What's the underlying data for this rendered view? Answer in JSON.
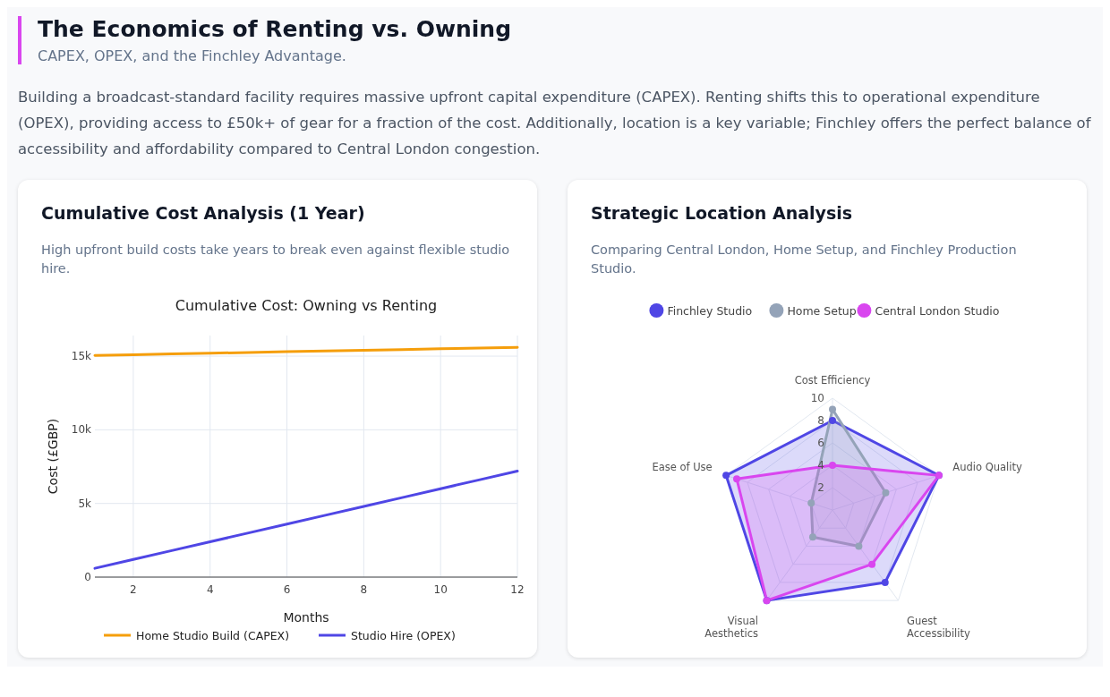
{
  "chart_data": [
    {
      "type": "other",
      "title": "The Economics of Renting vs. Owning",
      "subtitle": "CAPEX, OPEX, and the Finchley Advantage.",
      "annotations": [
        "Building a broadcast-standard facility requires massive upfront capital expenditure (CAPEX). Renting shifts this to operational expenditure (OPEX), providing access to £50k+ of gear for a fraction of the cost. Additionally, location is a key variable; Finchley offers the perfect balance of accessibility and affordability compared to Central London congestion."
      ]
    },
    {
      "type": "line",
      "title": "Cumulative Cost Analysis (1 Year)",
      "subtitle": "High upfront build costs take years to break even against flexible studio hire.",
      "annotations": [
        "Cumulative Cost: Owning vs Renting"
      ],
      "xlabel": "Months",
      "ylabel": "Cost (£GBP)",
      "x": [
        1,
        2,
        3,
        4,
        5,
        6,
        7,
        8,
        9,
        10,
        11,
        12
      ],
      "series": [
        {
          "name": "Home Studio Build (CAPEX)",
          "color": "#f59e0b",
          "values": [
            15050,
            15100,
            15150,
            15200,
            15250,
            15300,
            15350,
            15400,
            15450,
            15500,
            15550,
            15600
          ]
        },
        {
          "name": "Studio Hire (OPEX)",
          "color": "#4f46e5",
          "values": [
            600,
            1200,
            1800,
            2400,
            3000,
            3600,
            4200,
            4800,
            5400,
            6000,
            6600,
            7200
          ]
        }
      ],
      "xlim": [
        1,
        12
      ],
      "xticks": [
        2,
        4,
        6,
        8,
        10,
        12
      ],
      "ylim": [
        0,
        16400
      ],
      "yticks": [
        {
          "value": 0,
          "label": "0"
        },
        {
          "value": 5000,
          "label": "5k"
        },
        {
          "value": 10000,
          "label": "10k"
        },
        {
          "value": 15000,
          "label": "15k"
        }
      ],
      "grid": true,
      "legend": "bottom",
      "marker": "none",
      "line_style": "solid"
    },
    {
      "type": "radar",
      "title": "Strategic Location Analysis",
      "subtitle": "Comparing Central London, Home Setup, and Finchley Production Studio.",
      "categories": [
        "Cost Efficiency",
        "Audio Quality",
        "Guest Accessibility",
        "Visual Aesthetics",
        "Ease of Use"
      ],
      "series": [
        {
          "name": "Finchley Studio",
          "color": "#4f46e5",
          "values": [
            8,
            10,
            8,
            10,
            10
          ]
        },
        {
          "name": "Home Setup",
          "color": "#94a3b8",
          "values": [
            9,
            5,
            4,
            3,
            2
          ]
        },
        {
          "name": "Central London Studio",
          "color": "#d946ef",
          "values": [
            4,
            10,
            6,
            10,
            9
          ]
        }
      ],
      "ylim": [
        0,
        10
      ],
      "yticks": [
        2,
        4,
        6,
        8,
        10
      ],
      "legend": "top",
      "marker": "circle"
    }
  ]
}
